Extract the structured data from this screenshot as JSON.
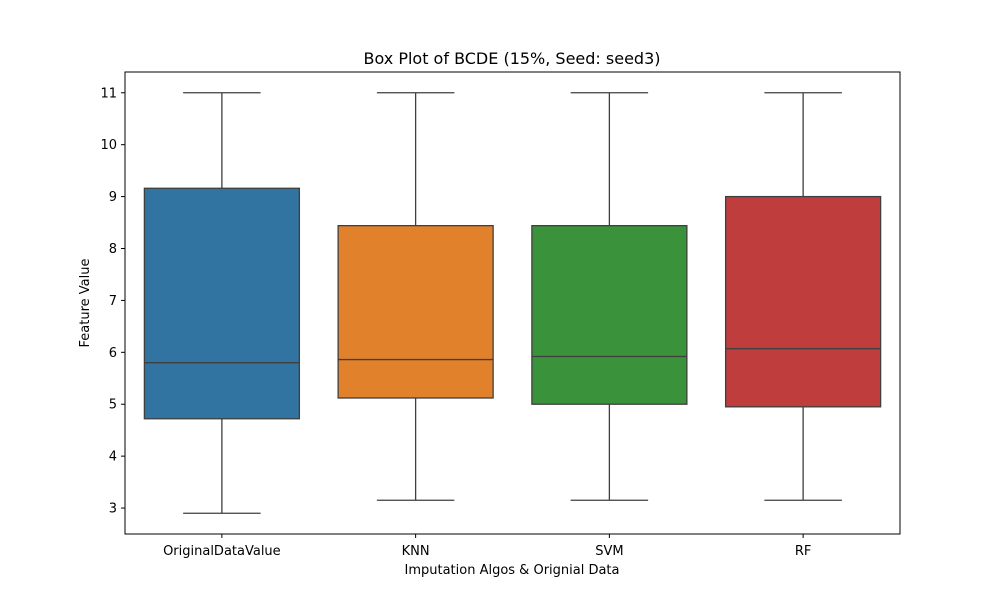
{
  "chart_data": {
    "type": "box",
    "title": "Box Plot of BCDE (15%, Seed: seed3)",
    "xlabel": "Imputation Algos & Orignial Data",
    "ylabel": "Feature Value",
    "ylim": [
      2.5,
      11.4
    ],
    "yticks": [
      3,
      4,
      5,
      6,
      7,
      8,
      9,
      10,
      11
    ],
    "grid": false,
    "categories": [
      "OriginalDataValue",
      "KNN",
      "SVM",
      "RF"
    ],
    "series": [
      {
        "category": "OriginalDataValue",
        "whisker_low": 2.9,
        "q1": 4.72,
        "median": 5.8,
        "q3": 9.16,
        "whisker_high": 11.0,
        "color": "#3274a1"
      },
      {
        "category": "KNN",
        "whisker_low": 3.15,
        "q1": 5.12,
        "median": 5.86,
        "q3": 8.44,
        "whisker_high": 11.0,
        "color": "#e1812c"
      },
      {
        "category": "SVM",
        "whisker_low": 3.15,
        "q1": 5.0,
        "median": 5.92,
        "q3": 8.44,
        "whisker_high": 11.0,
        "color": "#3a923a"
      },
      {
        "category": "RF",
        "whisker_low": 3.15,
        "q1": 4.95,
        "median": 6.07,
        "q3": 9.0,
        "whisker_high": 11.0,
        "color": "#c03d3e"
      }
    ]
  }
}
